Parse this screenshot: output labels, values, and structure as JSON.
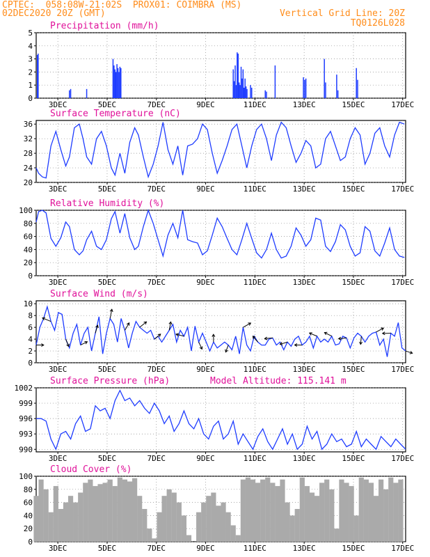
{
  "header": {
    "line1": "CPTEC:  058:08W-21:02S  PROX01: COIMBRA (MS)",
    "line2_left": "02DEC2020 20Z (GMT)",
    "line2_right": "Vertical Grid Line: 20Z",
    "line3_right": "TQ0126L028"
  },
  "x_ticks": [
    "3DEC",
    "5DEC",
    "7DEC",
    "9DEC",
    "11DEC",
    "13DEC",
    "15DEC",
    "17DEC"
  ],
  "colors": {
    "header": "#ff8c1a",
    "title": "#e0119a",
    "line": "#1e3cff",
    "bars": "#1e3cff",
    "cloud": "#aaaaaa",
    "arrow": "#000000"
  },
  "chart_data": [
    {
      "type": "bar",
      "title": "Precipitation (mm/h)",
      "x_unit": "days since 02DEC2020 20Z",
      "ylim": [
        0,
        5
      ],
      "yticks": [
        0,
        1,
        2,
        3,
        4,
        5
      ],
      "x": [
        0.05,
        0.08,
        1.35,
        1.4,
        2.05,
        3.12,
        3.16,
        3.2,
        3.24,
        3.28,
        3.32,
        3.36,
        3.4,
        3.44,
        8.0,
        8.04,
        8.08,
        8.12,
        8.16,
        8.2,
        8.24,
        8.28,
        8.32,
        8.36,
        8.4,
        8.44,
        8.48,
        8.52,
        8.56,
        8.7,
        8.75,
        9.3,
        9.35,
        9.7,
        10.85,
        10.9,
        10.95,
        11.7,
        11.75,
        12.2,
        12.25,
        13.0,
        13.05
      ],
      "y": [
        3.3,
        3.4,
        0.6,
        0.7,
        0.7,
        3.0,
        2.5,
        2.2,
        2.0,
        2.6,
        2.3,
        2.0,
        2.4,
        2.3,
        2.2,
        1.3,
        2.5,
        1.0,
        3.5,
        3.4,
        1.2,
        1.0,
        2.4,
        1.5,
        2.2,
        0.8,
        1.5,
        0.9,
        0.7,
        1.0,
        0.8,
        0.6,
        0.5,
        2.5,
        1.6,
        1.4,
        1.5,
        3.0,
        1.2,
        1.8,
        0.6,
        2.3,
        1.4
      ]
    },
    {
      "type": "line",
      "title": "Surface Temperature (nC)",
      "x_unit": "days since 02DEC2020 20Z",
      "ylim": [
        20,
        37
      ],
      "yticks": [
        20,
        24,
        28,
        32,
        36
      ],
      "x": [
        0.0,
        0.1,
        0.25,
        0.4,
        0.6,
        0.8,
        1.0,
        1.2,
        1.35,
        1.55,
        1.75,
        1.9,
        2.05,
        2.25,
        2.45,
        2.65,
        2.85,
        3.05,
        3.2,
        3.4,
        3.6,
        3.8,
        4.0,
        4.15,
        4.35,
        4.55,
        4.75,
        4.95,
        5.15,
        5.35,
        5.55,
        5.75,
        5.95,
        6.15,
        6.35,
        6.55,
        6.75,
        6.95,
        7.15,
        7.35,
        7.55,
        7.75,
        7.95,
        8.15,
        8.35,
        8.55,
        8.75,
        8.95,
        9.15,
        9.35,
        9.55,
        9.75,
        9.95,
        10.15,
        10.35,
        10.55,
        10.75,
        10.95,
        11.15,
        11.35,
        11.55,
        11.75,
        11.95,
        12.15,
        12.35,
        12.55,
        12.75,
        12.95,
        13.15,
        13.35,
        13.55,
        13.75,
        13.95,
        14.15,
        14.35,
        14.55,
        14.75,
        14.95
      ],
      "y": [
        24,
        22.5,
        21.5,
        21.2,
        30,
        34,
        29,
        24.5,
        27,
        35,
        36,
        32,
        27,
        25,
        32,
        34,
        30,
        24,
        22,
        28,
        22.5,
        31,
        35,
        33,
        27,
        21.5,
        25,
        30,
        36.5,
        29,
        25,
        30,
        22,
        30,
        30.5,
        32,
        36,
        34.5,
        28,
        22.5,
        26,
        30,
        34.5,
        36,
        30,
        24,
        30,
        34.5,
        36,
        32,
        26,
        33,
        36.5,
        35,
        30,
        25.5,
        28,
        31.5,
        30,
        24,
        25,
        32,
        34,
        30,
        26,
        27,
        32,
        35,
        33,
        25,
        28,
        33.5,
        35,
        30,
        27,
        33,
        36.5,
        36
      ]
    },
    {
      "type": "line",
      "title": "Relative Humidity (%)",
      "x_unit": "days since 02DEC2020 20Z",
      "ylim": [
        0,
        100
      ],
      "yticks": [
        0,
        20,
        40,
        60,
        80,
        100
      ],
      "x": [
        0.0,
        0.1,
        0.25,
        0.4,
        0.6,
        0.8,
        1.0,
        1.2,
        1.35,
        1.55,
        1.75,
        1.9,
        2.05,
        2.25,
        2.45,
        2.65,
        2.85,
        3.05,
        3.2,
        3.4,
        3.6,
        3.8,
        4.0,
        4.15,
        4.35,
        4.55,
        4.75,
        4.95,
        5.15,
        5.35,
        5.55,
        5.75,
        5.95,
        6.15,
        6.35,
        6.55,
        6.75,
        6.95,
        7.15,
        7.35,
        7.55,
        7.75,
        7.95,
        8.15,
        8.35,
        8.55,
        8.75,
        8.95,
        9.15,
        9.35,
        9.55,
        9.75,
        9.95,
        10.15,
        10.35,
        10.55,
        10.75,
        10.95,
        11.15,
        11.35,
        11.55,
        11.75,
        11.95,
        12.15,
        12.35,
        12.55,
        12.75,
        12.95,
        13.15,
        13.35,
        13.55,
        13.75,
        13.95,
        14.15,
        14.35,
        14.55,
        14.75,
        14.95
      ],
      "y": [
        82,
        98,
        100,
        96,
        57,
        45,
        58,
        82,
        75,
        40,
        32,
        38,
        55,
        68,
        45,
        40,
        55,
        87,
        98,
        65,
        95,
        58,
        40,
        45,
        75,
        100,
        80,
        55,
        30,
        62,
        80,
        58,
        100,
        55,
        52,
        50,
        32,
        38,
        62,
        88,
        75,
        57,
        40,
        32,
        55,
        80,
        57,
        35,
        27,
        40,
        65,
        40,
        27,
        30,
        45,
        73,
        62,
        45,
        55,
        88,
        85,
        45,
        37,
        52,
        78,
        70,
        45,
        30,
        35,
        75,
        68,
        38,
        30,
        50,
        73,
        40,
        30,
        28
      ]
    },
    {
      "type": "line",
      "title": "Surface Wind (m/s)",
      "x_unit": "days since 02DEC2020 20Z",
      "ylim": [
        0,
        10.5
      ],
      "yticks": [
        0,
        2,
        4,
        6,
        8,
        10
      ],
      "x": [
        0.0,
        0.15,
        0.3,
        0.45,
        0.6,
        0.75,
        0.9,
        1.05,
        1.2,
        1.35,
        1.5,
        1.65,
        1.8,
        1.95,
        2.1,
        2.25,
        2.4,
        2.55,
        2.7,
        2.85,
        3.0,
        3.15,
        3.3,
        3.45,
        3.6,
        3.75,
        3.9,
        4.05,
        4.2,
        4.35,
        4.5,
        4.65,
        4.8,
        4.95,
        5.1,
        5.25,
        5.4,
        5.55,
        5.7,
        5.85,
        6.0,
        6.15,
        6.3,
        6.45,
        6.6,
        6.75,
        6.9,
        7.05,
        7.2,
        7.35,
        7.5,
        7.65,
        7.8,
        7.95,
        8.1,
        8.25,
        8.4,
        8.55,
        8.7,
        8.85,
        9.0,
        9.15,
        9.3,
        9.45,
        9.6,
        9.75,
        9.9,
        10.05,
        10.2,
        10.35,
        10.5,
        10.65,
        10.8,
        10.95,
        11.1,
        11.25,
        11.4,
        11.55,
        11.7,
        11.85,
        12.0,
        12.15,
        12.3,
        12.45,
        12.6,
        12.75,
        12.9,
        13.05,
        13.2,
        13.35,
        13.5,
        13.65,
        13.8,
        13.95,
        14.1,
        14.25,
        14.4,
        14.55,
        14.7,
        14.85,
        15.0
      ],
      "y": [
        3,
        6,
        7.5,
        9.5,
        7,
        5.5,
        8.5,
        8.2,
        4,
        2.5,
        5,
        6.5,
        3,
        5,
        6,
        2,
        5,
        7.8,
        1.5,
        5,
        7.5,
        6.5,
        3.5,
        7.5,
        5.5,
        2.5,
        5,
        7,
        6,
        5.5,
        5,
        5.5,
        4,
        4.5,
        3.5,
        4.5,
        5.5,
        6.5,
        3.5,
        5.5,
        4.5,
        6,
        2,
        6.2,
        3.5,
        5,
        3.5,
        2,
        3.5,
        2.5,
        3,
        3.5,
        3,
        2.2,
        4.5,
        1.5,
        6,
        3,
        2,
        4.5,
        3.5,
        3,
        3,
        4,
        4.2,
        3,
        3.5,
        2.2,
        3.5,
        2.8,
        4,
        4.5,
        3,
        3.5,
        4.5,
        2.5,
        4.5,
        3.5,
        4,
        3.5,
        4.5,
        3,
        3.2,
        4.5,
        4.2,
        2.5,
        4.2,
        5,
        4.5,
        3.5,
        4.5,
        5,
        5.2,
        3,
        4,
        1,
        5,
        4.5,
        6.8,
        2.5,
        2
      ]
    },
    {
      "type": "line",
      "title": "Surface Pressure (hPa)",
      "annotation": "Model Altitude: 115.141 m",
      "x_unit": "days since 02DEC2020 20Z",
      "ylim": [
        989.5,
        1002
      ],
      "yticks": [
        990,
        993,
        996,
        999,
        1002
      ],
      "x": [
        0.0,
        0.2,
        0.4,
        0.6,
        0.8,
        1.0,
        1.2,
        1.4,
        1.6,
        1.8,
        2.0,
        2.2,
        2.4,
        2.6,
        2.8,
        3.0,
        3.2,
        3.4,
        3.6,
        3.8,
        4.0,
        4.2,
        4.4,
        4.6,
        4.8,
        5.0,
        5.2,
        5.4,
        5.6,
        5.8,
        6.0,
        6.2,
        6.4,
        6.6,
        6.8,
        7.0,
        7.2,
        7.4,
        7.6,
        7.8,
        8.0,
        8.2,
        8.4,
        8.6,
        8.8,
        9.0,
        9.2,
        9.4,
        9.6,
        9.8,
        10.0,
        10.2,
        10.4,
        10.6,
        10.8,
        11.0,
        11.2,
        11.4,
        11.6,
        11.8,
        12.0,
        12.2,
        12.4,
        12.6,
        12.8,
        13.0,
        13.2,
        13.4,
        13.6,
        13.8,
        14.0,
        14.2,
        14.4,
        14.6,
        14.8,
        15.0
      ],
      "y": [
        996,
        996,
        995.5,
        992,
        990,
        993,
        993.5,
        992,
        995,
        996.5,
        993.5,
        994,
        998.5,
        997.5,
        998,
        996,
        999.5,
        1001.5,
        999.5,
        1000,
        998.5,
        999.5,
        998,
        997,
        999,
        997.5,
        995,
        996.5,
        993.5,
        995,
        997.5,
        995,
        994,
        996,
        993,
        992,
        994.5,
        995.5,
        992,
        993,
        995.5,
        991,
        993,
        991.5,
        990,
        992.5,
        994,
        991.5,
        990,
        992,
        994,
        991,
        993,
        990,
        991,
        994.5,
        992,
        993.5,
        990,
        991,
        993,
        991.5,
        992,
        990.5,
        991,
        993.5,
        990.5,
        992,
        991,
        990,
        992.5,
        991.5,
        990.5,
        992,
        991,
        990
      ]
    },
    {
      "type": "bar",
      "title": "Cloud Cover (%)",
      "x_unit": "days since 02DEC2020 20Z",
      "ylim": [
        0,
        100
      ],
      "yticks": [
        0,
        20,
        40,
        60,
        80,
        100
      ],
      "x": [
        0.0,
        0.2,
        0.4,
        0.6,
        0.8,
        1.0,
        1.2,
        1.4,
        1.6,
        1.8,
        2.0,
        2.2,
        2.4,
        2.6,
        2.8,
        3.0,
        3.2,
        3.4,
        3.6,
        3.8,
        4.0,
        4.2,
        4.4,
        4.6,
        4.8,
        5.0,
        5.2,
        5.4,
        5.6,
        5.8,
        6.0,
        6.2,
        6.4,
        6.6,
        6.8,
        7.0,
        7.2,
        7.4,
        7.6,
        7.8,
        8.0,
        8.2,
        8.4,
        8.6,
        8.8,
        9.0,
        9.2,
        9.4,
        9.6,
        9.8,
        10.0,
        10.2,
        10.4,
        10.6,
        10.8,
        11.0,
        11.2,
        11.4,
        11.6,
        11.8,
        12.0,
        12.2,
        12.4,
        12.6,
        12.8,
        13.0,
        13.2,
        13.4,
        13.6,
        13.8,
        14.0,
        14.2,
        14.4,
        14.6,
        14.8,
        15.0
      ],
      "y": [
        70,
        95,
        80,
        45,
        85,
        50,
        60,
        70,
        60,
        75,
        90,
        95,
        85,
        88,
        90,
        95,
        85,
        98,
        95,
        92,
        97,
        70,
        50,
        20,
        5,
        45,
        70,
        80,
        75,
        60,
        40,
        10,
        0,
        45,
        60,
        70,
        75,
        55,
        60,
        45,
        25,
        10,
        95,
        98,
        95,
        90,
        95,
        98,
        90,
        85,
        95,
        60,
        40,
        50,
        98,
        85,
        75,
        70,
        90,
        95,
        80,
        20,
        95,
        90,
        85,
        40,
        98,
        95,
        90,
        70,
        95,
        80,
        98,
        90,
        95,
        0
      ]
    }
  ]
}
